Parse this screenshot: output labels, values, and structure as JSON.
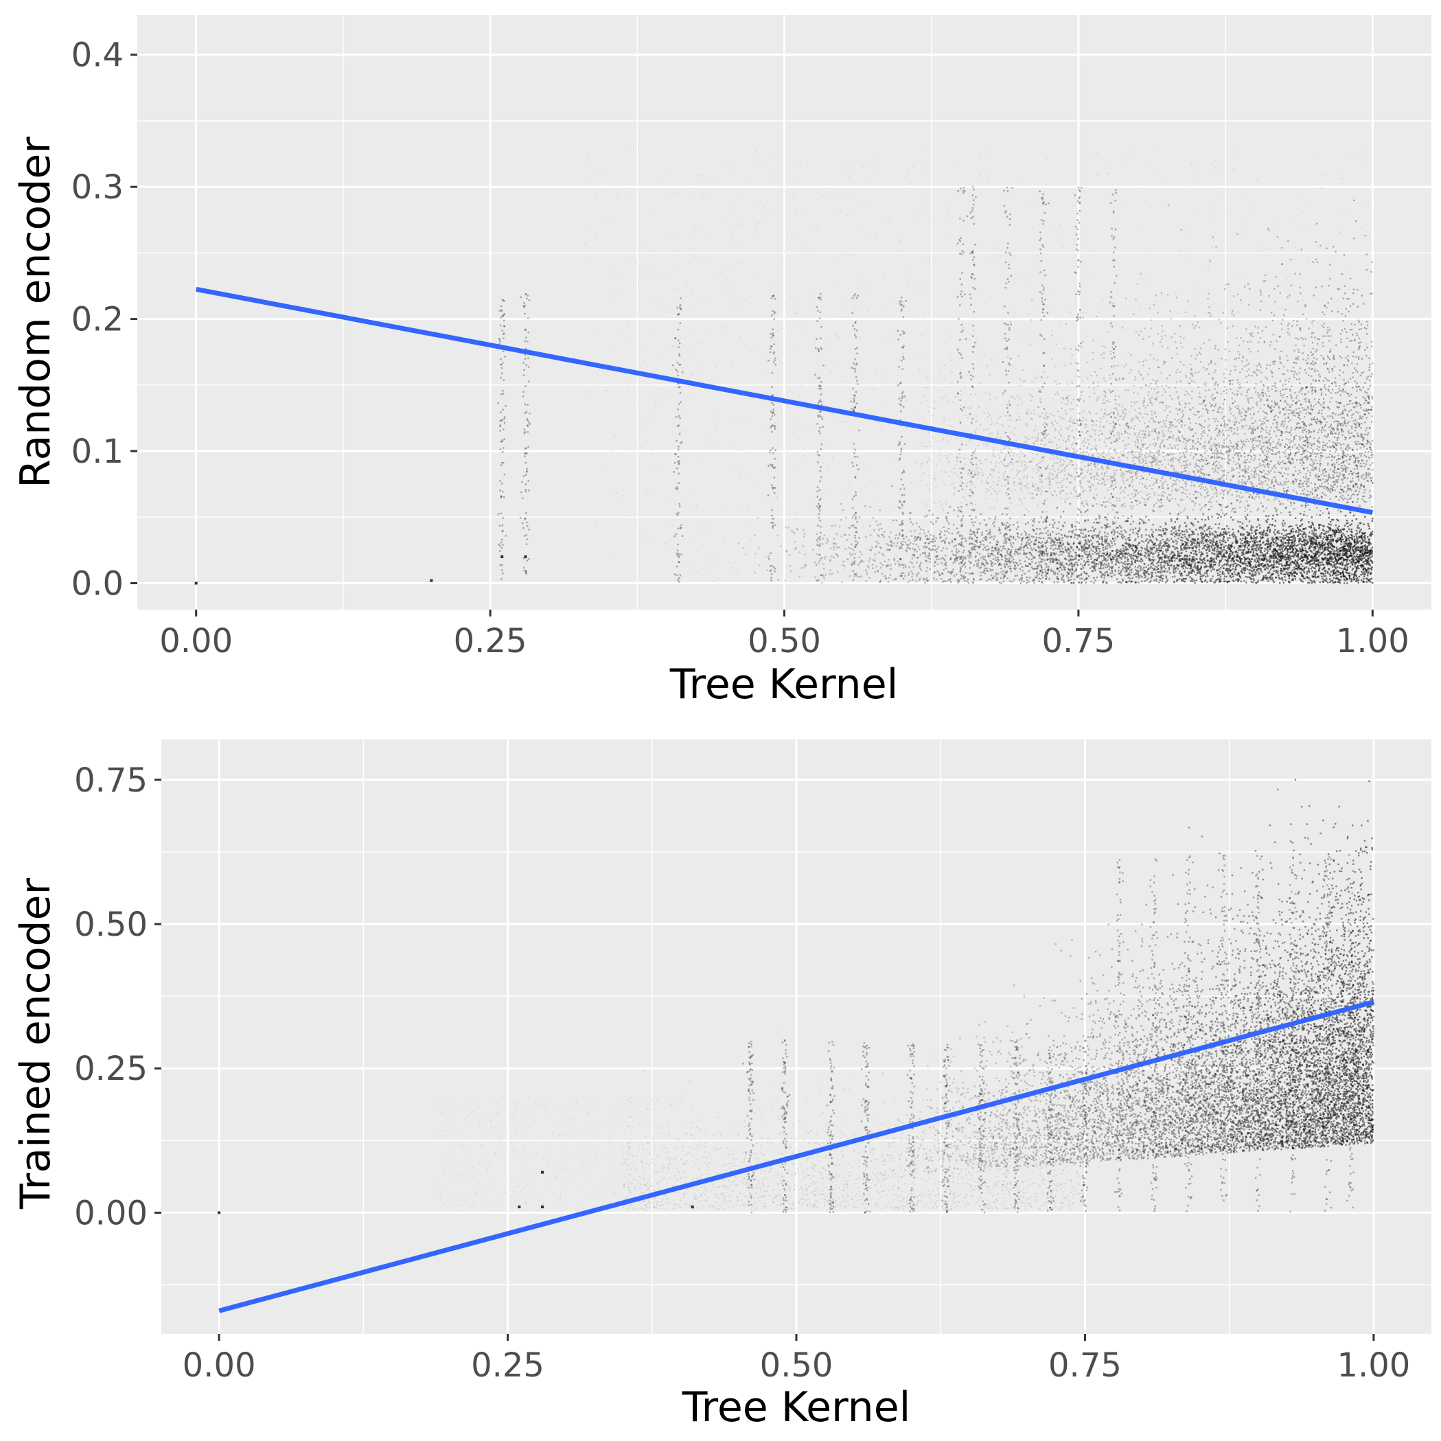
{
  "chart_data": [
    {
      "type": "scatter",
      "title": "",
      "xlabel": "Tree Kernel",
      "ylabel": "Random encoder",
      "xlim": [
        -0.05,
        1.05
      ],
      "ylim": [
        -0.02,
        0.43
      ],
      "x_ticks": [
        0.0,
        0.25,
        0.5,
        0.75,
        1.0
      ],
      "x_tick_labels": [
        "0.00",
        "0.25",
        "0.50",
        "0.75",
        "1.00"
      ],
      "y_ticks": [
        0.0,
        0.1,
        0.2,
        0.3,
        0.4
      ],
      "y_tick_labels": [
        "0.0",
        "0.1",
        "0.2",
        "0.3",
        "0.4"
      ],
      "grid": true,
      "background": "#ebebeb",
      "point_color": "#1a1a1a",
      "point_structure": {
        "bands": [
          {
            "x_range": [
              0.45,
              1.0
            ],
            "y_range": [
              0.0,
              0.04
            ],
            "density": "very high"
          },
          {
            "x_range": [
              0.65,
              1.0
            ],
            "y_range": [
              0.06,
              0.27
            ],
            "density": "high"
          }
        ],
        "vertical_streaks_at_x": [
          0.26,
          0.28,
          0.41,
          0.49,
          0.53,
          0.56,
          0.6,
          0.65,
          0.66,
          0.69,
          0.72,
          0.75,
          0.78
        ],
        "outlier_points": [
          [
            0.0,
            0.0
          ],
          [
            0.2,
            0.002
          ],
          [
            0.26,
            0.02
          ],
          [
            0.28,
            0.02
          ]
        ]
      },
      "fit_line": {
        "color": "#3366ff",
        "x": [
          0.0,
          1.0
        ],
        "y": [
          0.2225,
          0.0535
        ]
      }
    },
    {
      "type": "scatter",
      "title": "",
      "xlabel": "Tree Kernel",
      "ylabel": "Trained encoder",
      "xlim": [
        -0.05,
        1.05
      ],
      "ylim": [
        -0.21,
        0.82
      ],
      "x_ticks": [
        0.0,
        0.25,
        0.5,
        0.75,
        1.0
      ],
      "x_tick_labels": [
        "0.00",
        "0.25",
        "0.50",
        "0.75",
        "1.00"
      ],
      "y_ticks": [
        0.0,
        0.25,
        0.5,
        0.75
      ],
      "y_tick_labels": [
        "0.00",
        "0.25",
        "0.50",
        "0.75"
      ],
      "grid": true,
      "background": "#ebebeb",
      "point_color": "#1a1a1a",
      "point_structure": {
        "bands": [
          {
            "x_range": [
              0.6,
              1.0
            ],
            "y_range": [
              0.07,
              0.6
            ],
            "density": "very high"
          },
          {
            "x_range": [
              0.45,
              0.75
            ],
            "y_range": [
              0.0,
              0.3
            ],
            "density": "medium"
          }
        ],
        "vertical_streaks_at_x": [
          0.46,
          0.49,
          0.53,
          0.56,
          0.6,
          0.63,
          0.66,
          0.69,
          0.72,
          0.75,
          0.78,
          0.81,
          0.84,
          0.87,
          0.9,
          0.93,
          0.96,
          0.98
        ],
        "outlier_points": [
          [
            0.0,
            0.0
          ],
          [
            0.26,
            0.01
          ],
          [
            0.28,
            0.01
          ],
          [
            0.28,
            0.07
          ],
          [
            0.41,
            0.01
          ]
        ]
      },
      "fit_line": {
        "color": "#3366ff",
        "x": [
          0.0,
          1.0
        ],
        "y": [
          -0.17,
          0.365
        ]
      }
    }
  ]
}
